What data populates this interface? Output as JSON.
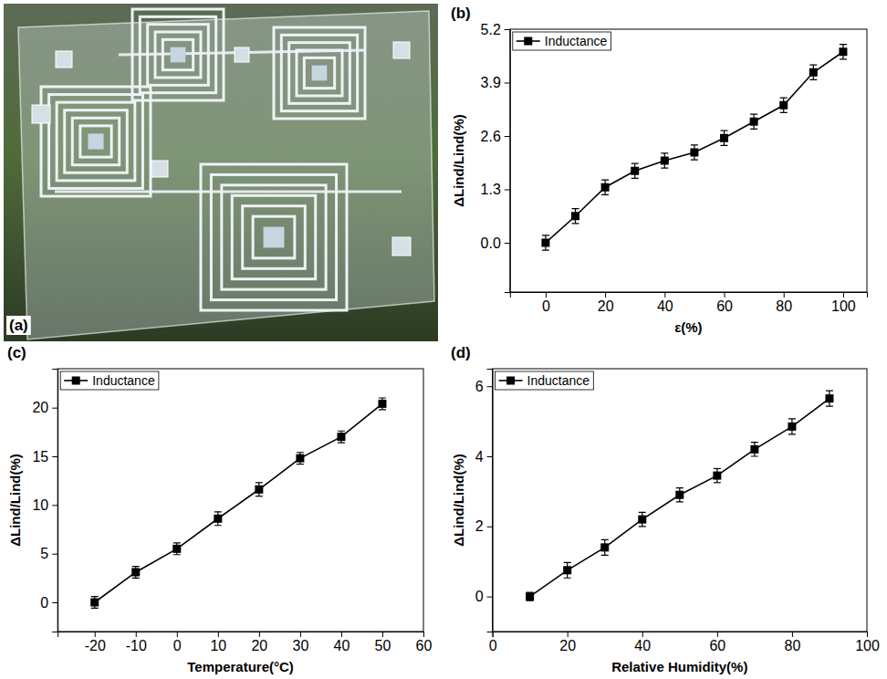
{
  "figure": {
    "photo_label": "(a)"
  },
  "chart_data": [
    {
      "panel": "(b)",
      "type": "line",
      "marker": "square",
      "legend": "upper-left",
      "x_label": "ε(%)",
      "y_label": "ΔLind/Lind(%)",
      "x": [
        0,
        10,
        20,
        30,
        40,
        50,
        60,
        70,
        80,
        90,
        100
      ],
      "xlim": [
        -12,
        108
      ],
      "xticks": [
        0,
        20,
        40,
        60,
        80,
        100
      ],
      "ylim": [
        -1.2,
        5.2
      ],
      "yticks": [
        {
          "value": 0,
          "label": "0.0"
        },
        1.3,
        2.6,
        3.9,
        5.2
      ],
      "series": [
        {
          "name": "Inductance",
          "color": "#000000",
          "values": [
            0,
            0.65,
            1.35,
            1.75,
            2.0,
            2.2,
            2.55,
            2.95,
            3.35,
            4.15,
            4.65
          ],
          "errors": [
            0.18,
            0.18,
            0.18,
            0.18,
            0.18,
            0.18,
            0.18,
            0.18,
            0.18,
            0.18,
            0.18
          ]
        }
      ]
    },
    {
      "panel": "(c)",
      "type": "line",
      "marker": "square",
      "legend": "upper-left",
      "x_label": "Temperature(°C)",
      "y_label": "ΔLind/Lind(%)",
      "x": [
        -20,
        -10,
        0,
        10,
        20,
        30,
        40,
        50
      ],
      "xlim": [
        -29,
        60
      ],
      "xticks": [
        -20,
        -10,
        0,
        10,
        20,
        30,
        40,
        50,
        60
      ],
      "ylim": [
        -3,
        24
      ],
      "yticks": [
        0,
        5,
        10,
        15,
        20
      ],
      "series": [
        {
          "name": "Inductance",
          "color": "#000000",
          "values": [
            0,
            3.1,
            5.5,
            8.6,
            11.6,
            14.8,
            17.0,
            20.4
          ],
          "errors": [
            0.6,
            0.6,
            0.6,
            0.7,
            0.7,
            0.6,
            0.6,
            0.6
          ]
        }
      ]
    },
    {
      "panel": "(d)",
      "type": "line",
      "marker": "square",
      "legend": "upper-left",
      "x_label": "Relative Humidity(%)",
      "y_label": "ΔLind/Lind(%)",
      "x": [
        10,
        20,
        30,
        40,
        50,
        60,
        70,
        80,
        90
      ],
      "xlim": [
        0,
        100
      ],
      "xticks": [
        0,
        20,
        40,
        60,
        80,
        100
      ],
      "ylim": [
        -1,
        6.5
      ],
      "yticks": [
        0,
        2,
        4,
        6
      ],
      "series": [
        {
          "name": "Inductance",
          "color": "#000000",
          "values": [
            0,
            0.75,
            1.4,
            2.2,
            2.9,
            3.45,
            4.2,
            4.85,
            5.65
          ],
          "errors": [
            0.12,
            0.22,
            0.22,
            0.2,
            0.2,
            0.2,
            0.2,
            0.22,
            0.22
          ]
        }
      ]
    }
  ]
}
